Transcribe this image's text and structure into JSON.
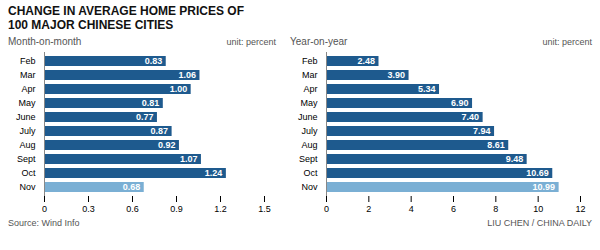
{
  "title": "CHANGE IN AVERAGE HOME PRICES OF",
  "subtitle": "100 MAJOR CHINESE CITIES",
  "annotations": [
    "Source: Wind Info",
    "LIU CHEN / CHINA DAILY"
  ],
  "chart_data": [
    {
      "type": "bar",
      "orientation": "horizontal",
      "title": "Month-on-month",
      "annotations": [
        "unit: percent"
      ],
      "categories": [
        "Feb",
        "Mar",
        "Apr",
        "May",
        "June",
        "July",
        "Aug",
        "Sept",
        "Oct",
        "Nov"
      ],
      "values": [
        0.83,
        1.06,
        1.0,
        0.81,
        0.77,
        0.87,
        0.92,
        1.07,
        1.24,
        0.68
      ],
      "value_labels": [
        "0.83",
        "1.06",
        "1.00",
        "0.81",
        "0.77",
        "0.87",
        "0.92",
        "1.07",
        "1.24",
        "0.68"
      ],
      "colors": [
        "#1e5a8e",
        "#1e5a8e",
        "#1e5a8e",
        "#1e5a8e",
        "#1e5a8e",
        "#1e5a8e",
        "#1e5a8e",
        "#1e5a8e",
        "#1e5a8e",
        "#7aafd4"
      ],
      "xlim": [
        0,
        1.5
      ],
      "xticks": [
        0,
        0.3,
        0.6,
        0.9,
        1.2,
        1.5
      ],
      "data_labels": true,
      "grid": false
    },
    {
      "type": "bar",
      "orientation": "horizontal",
      "title": "Year-on-year",
      "annotations": [
        "unit: percent"
      ],
      "categories": [
        "Feb",
        "Mar",
        "Apr",
        "May",
        "June",
        "July",
        "Aug",
        "Sept",
        "Oct",
        "Nov"
      ],
      "values": [
        2.48,
        3.9,
        5.34,
        6.9,
        7.4,
        7.94,
        8.61,
        9.48,
        10.69,
        10.99
      ],
      "value_labels": [
        "2.48",
        "3.90",
        "5.34",
        "6.90",
        "7.40",
        "7.94",
        "8.61",
        "9.48",
        "10.69",
        "10.99"
      ],
      "colors": [
        "#1e5a8e",
        "#1e5a8e",
        "#1e5a8e",
        "#1e5a8e",
        "#1e5a8e",
        "#1e5a8e",
        "#1e5a8e",
        "#1e5a8e",
        "#1e5a8e",
        "#7aafd4"
      ],
      "xlim": [
        0,
        12
      ],
      "xticks": [
        0,
        2,
        4,
        6,
        8,
        10,
        12
      ],
      "data_labels": true,
      "grid": false
    }
  ]
}
